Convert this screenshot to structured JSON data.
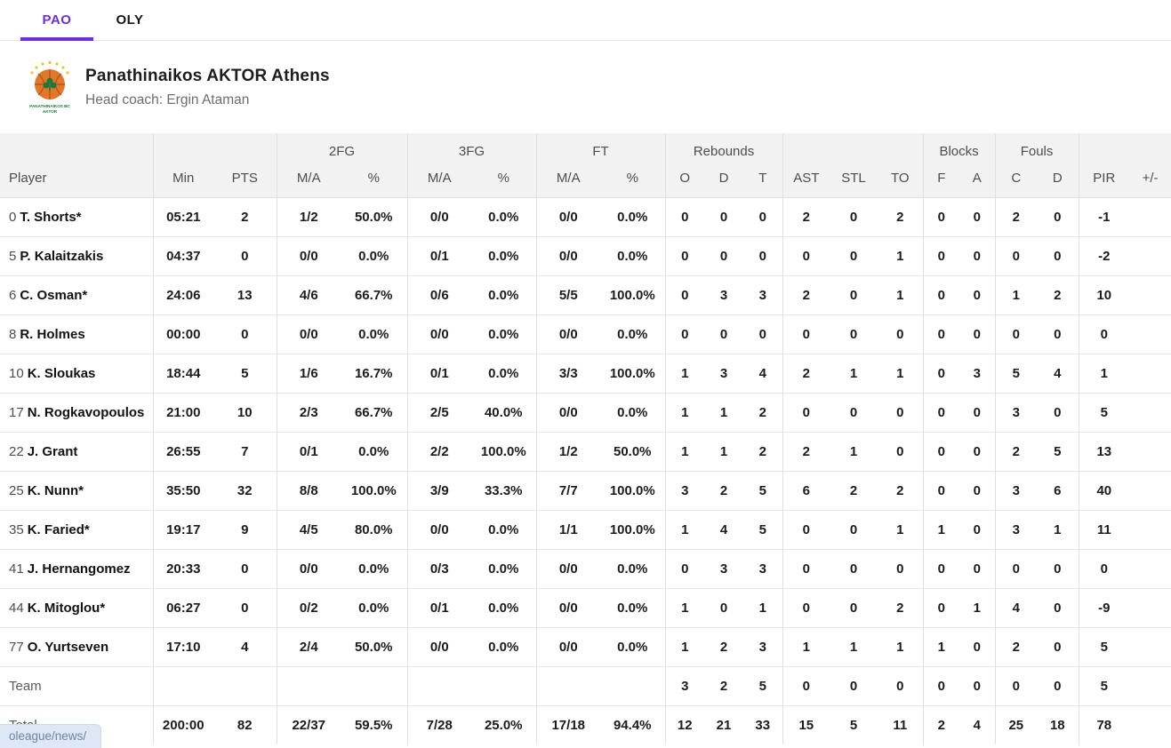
{
  "tabs": [
    {
      "label": "PAO",
      "active": true
    },
    {
      "label": "OLY",
      "active": false
    }
  ],
  "team": {
    "name": "Panathinaikos AKTOR Athens",
    "coach": "Head coach: Ergin Ataman",
    "logo_caption_line1": "PANATHINAIKOS BC",
    "logo_caption_line2": "AKTOR"
  },
  "table": {
    "group_headers": {
      "fg2": "2FG",
      "fg3": "3FG",
      "ft": "FT",
      "rebounds": "Rebounds",
      "blocks": "Blocks",
      "fouls": "Fouls"
    },
    "columns": {
      "player": "Player",
      "min": "Min",
      "pts": "PTS",
      "ma": "M/A",
      "pct": "%",
      "reb_o": "O",
      "reb_d": "D",
      "reb_t": "T",
      "ast": "AST",
      "stl": "STL",
      "to": "TO",
      "blk_f": "F",
      "blk_a": "A",
      "foul_c": "C",
      "foul_d": "D",
      "pir": "PIR",
      "plus_minus": "+/-"
    },
    "rows": [
      {
        "num": "0",
        "name": "T. Shorts*",
        "cells": [
          "05:21",
          "2",
          "1/2",
          "50.0%",
          "0/0",
          "0.0%",
          "0/0",
          "0.0%",
          "0",
          "0",
          "0",
          "2",
          "0",
          "2",
          "0",
          "0",
          "2",
          "0",
          "-1",
          ""
        ]
      },
      {
        "num": "5",
        "name": "P. Kalaitzakis",
        "cells": [
          "04:37",
          "0",
          "0/0",
          "0.0%",
          "0/1",
          "0.0%",
          "0/0",
          "0.0%",
          "0",
          "0",
          "0",
          "0",
          "0",
          "1",
          "0",
          "0",
          "0",
          "0",
          "-2",
          ""
        ]
      },
      {
        "num": "6",
        "name": "C. Osman*",
        "cells": [
          "24:06",
          "13",
          "4/6",
          "66.7%",
          "0/6",
          "0.0%",
          "5/5",
          "100.0%",
          "0",
          "3",
          "3",
          "2",
          "0",
          "1",
          "0",
          "0",
          "1",
          "2",
          "10",
          ""
        ]
      },
      {
        "num": "8",
        "name": "R. Holmes",
        "cells": [
          "00:00",
          "0",
          "0/0",
          "0.0%",
          "0/0",
          "0.0%",
          "0/0",
          "0.0%",
          "0",
          "0",
          "0",
          "0",
          "0",
          "0",
          "0",
          "0",
          "0",
          "0",
          "0",
          ""
        ]
      },
      {
        "num": "10",
        "name": "K. Sloukas",
        "cells": [
          "18:44",
          "5",
          "1/6",
          "16.7%",
          "0/1",
          "0.0%",
          "3/3",
          "100.0%",
          "1",
          "3",
          "4",
          "2",
          "1",
          "1",
          "0",
          "3",
          "5",
          "4",
          "1",
          ""
        ]
      },
      {
        "num": "17",
        "name": "N. Rogkavopoulos",
        "cells": [
          "21:00",
          "10",
          "2/3",
          "66.7%",
          "2/5",
          "40.0%",
          "0/0",
          "0.0%",
          "1",
          "1",
          "2",
          "0",
          "0",
          "0",
          "0",
          "0",
          "3",
          "0",
          "5",
          ""
        ]
      },
      {
        "num": "22",
        "name": "J. Grant",
        "cells": [
          "26:55",
          "7",
          "0/1",
          "0.0%",
          "2/2",
          "100.0%",
          "1/2",
          "50.0%",
          "1",
          "1",
          "2",
          "2",
          "1",
          "0",
          "0",
          "0",
          "2",
          "5",
          "13",
          ""
        ]
      },
      {
        "num": "25",
        "name": "K. Nunn*",
        "cells": [
          "35:50",
          "32",
          "8/8",
          "100.0%",
          "3/9",
          "33.3%",
          "7/7",
          "100.0%",
          "3",
          "2",
          "5",
          "6",
          "2",
          "2",
          "0",
          "0",
          "3",
          "6",
          "40",
          ""
        ]
      },
      {
        "num": "35",
        "name": "K. Faried*",
        "cells": [
          "19:17",
          "9",
          "4/5",
          "80.0%",
          "0/0",
          "0.0%",
          "1/1",
          "100.0%",
          "1",
          "4",
          "5",
          "0",
          "0",
          "1",
          "1",
          "0",
          "3",
          "1",
          "11",
          ""
        ]
      },
      {
        "num": "41",
        "name": "J. Hernangomez",
        "cells": [
          "20:33",
          "0",
          "0/0",
          "0.0%",
          "0/3",
          "0.0%",
          "0/0",
          "0.0%",
          "0",
          "3",
          "3",
          "0",
          "0",
          "0",
          "0",
          "0",
          "0",
          "0",
          "0",
          ""
        ]
      },
      {
        "num": "44",
        "name": "K. Mitoglou*",
        "cells": [
          "06:27",
          "0",
          "0/2",
          "0.0%",
          "0/1",
          "0.0%",
          "0/0",
          "0.0%",
          "1",
          "0",
          "1",
          "0",
          "0",
          "2",
          "0",
          "1",
          "4",
          "0",
          "-9",
          ""
        ]
      },
      {
        "num": "77",
        "name": "O. Yurtseven",
        "cells": [
          "17:10",
          "4",
          "2/4",
          "50.0%",
          "0/0",
          "0.0%",
          "0/0",
          "0.0%",
          "1",
          "2",
          "3",
          "1",
          "1",
          "1",
          "1",
          "0",
          "2",
          "0",
          "5",
          ""
        ]
      }
    ],
    "team_row": {
      "label": "Team",
      "cells": [
        "",
        "",
        "",
        "",
        "",
        "",
        "",
        "",
        "3",
        "2",
        "5",
        "0",
        "0",
        "0",
        "0",
        "0",
        "0",
        "0",
        "5",
        ""
      ]
    },
    "total_row": {
      "label": "Total",
      "cells": [
        "200:00",
        "82",
        "22/37",
        "59.5%",
        "7/28",
        "25.0%",
        "17/18",
        "94.4%",
        "12",
        "21",
        "33",
        "15",
        "5",
        "11",
        "2",
        "4",
        "25",
        "18",
        "78",
        ""
      ]
    }
  },
  "status_bar": {
    "link_preview": "oleague/news/"
  },
  "colors": {
    "accent": "#6c2ee0",
    "header_bg": "#f2f2f2",
    "logo_orange": "#e2772b",
    "logo_green": "#1b7a3a",
    "logo_star": "#f2c230"
  }
}
